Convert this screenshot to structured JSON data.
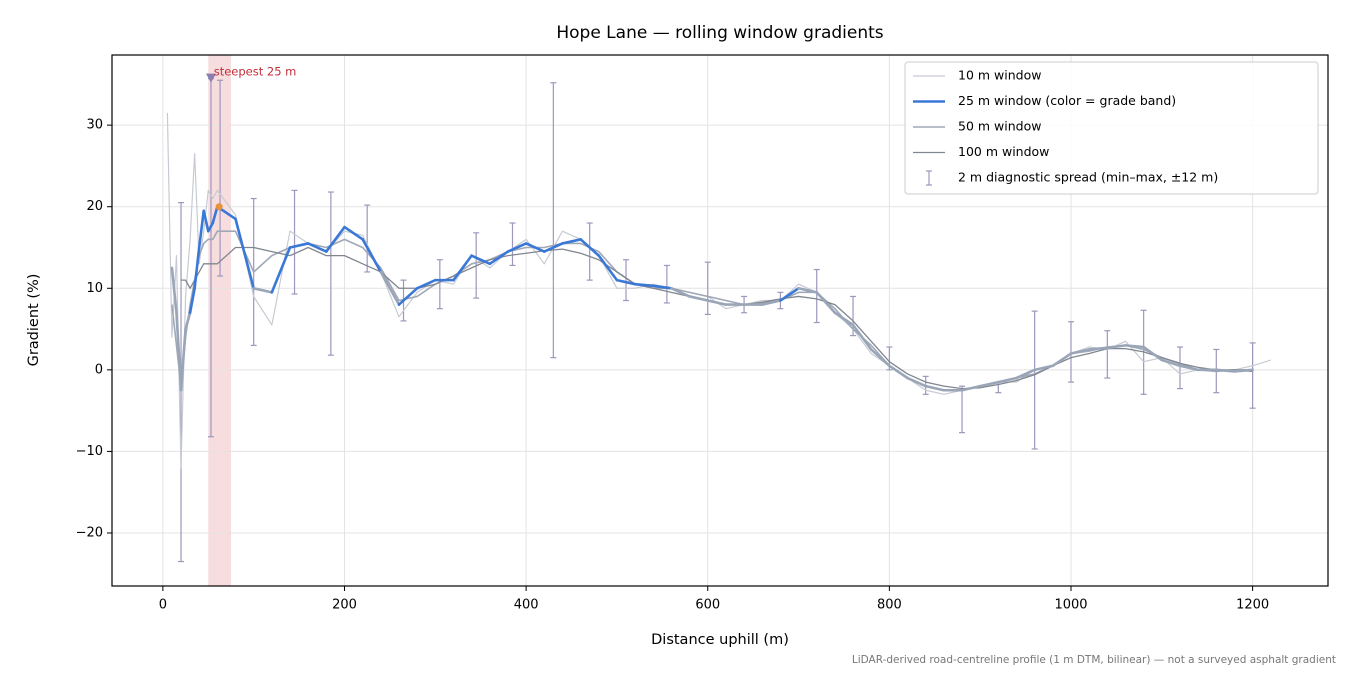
{
  "chart_data": {
    "type": "line",
    "title": "Hope Lane — rolling window gradients",
    "x_label": "Distance uphill (m)",
    "y_label": "Gradient (%)",
    "footnote": "LiDAR-derived road-centreline profile (1 m DTM, bilinear) — not a surveyed asphalt gradient",
    "xlim": [
      -56,
      1283
    ],
    "ylim": [
      -26.5,
      38.6
    ],
    "xticks": [
      0,
      200,
      400,
      600,
      800,
      1000,
      1200
    ],
    "yticks": [
      {
        "value": -20,
        "label": "−20"
      },
      {
        "value": -10,
        "label": "−10"
      },
      0,
      10,
      20,
      30
    ],
    "grid": true,
    "legend": "upper right",
    "x": [
      5,
      10,
      15,
      20,
      25,
      30,
      35,
      40,
      45,
      50,
      55,
      60,
      80,
      100,
      120,
      140,
      160,
      180,
      200,
      220,
      240,
      260,
      280,
      300,
      320,
      340,
      360,
      380,
      400,
      420,
      440,
      460,
      480,
      500,
      520,
      540,
      560,
      580,
      600,
      620,
      640,
      660,
      680,
      700,
      720,
      740,
      760,
      780,
      800,
      820,
      840,
      860,
      880,
      900,
      920,
      940,
      960,
      980,
      1000,
      1020,
      1040,
      1060,
      1080,
      1100,
      1120,
      1140,
      1160,
      1180,
      1200,
      1220
    ],
    "series": [
      {
        "name": "10 m window",
        "color": "#c6cbd3",
        "width": 1.2,
        "values": [
          31.5,
          4,
          14,
          -12,
          9,
          16,
          26.5,
          13,
          17,
          22,
          21,
          22,
          19,
          9,
          5.5,
          17,
          15.5,
          14.5,
          17,
          16.5,
          12,
          6.5,
          9.5,
          11,
          10.5,
          14,
          12.5,
          14.5,
          16,
          13,
          17,
          16,
          14,
          10,
          10,
          10.5,
          10,
          9.5,
          9,
          7.5,
          8,
          8.5,
          8.5,
          10.5,
          9.5,
          7,
          5,
          2,
          0.5,
          -1,
          -2.5,
          -3,
          -2.5,
          -2,
          -1.5,
          -1.5,
          0,
          0.5,
          2,
          2.8,
          2.5,
          3.5,
          1,
          1.5,
          -0.5,
          0,
          0,
          0,
          0.5,
          1.2
        ]
      },
      {
        "name": "25 m window (color = grade band)",
        "color": "#3a78d8",
        "width": 2.6,
        "values": [
          null,
          12.5,
          7,
          -2.5,
          5,
          7,
          10,
          15,
          19.5,
          17,
          18,
          20,
          18.5,
          10,
          9.5,
          15,
          15.5,
          14.5,
          17.5,
          16,
          12,
          8,
          10,
          11,
          11,
          14,
          13,
          14.5,
          15.5,
          14.5,
          15.5,
          16,
          14,
          11,
          10.5,
          10.3,
          10,
          9,
          8.5,
          8,
          8,
          8,
          8.5,
          10,
          9.5,
          7,
          5.5,
          2.5,
          0.5,
          -1,
          -2,
          -2.5,
          -2.5,
          -2,
          -1.5,
          -1,
          0,
          0.5,
          2,
          2.5,
          2.7,
          3,
          2.8,
          1.2,
          0.5,
          0,
          0,
          -0.2,
          0,
          null
        ],
        "colors": [
          "#9aa6b8",
          "#3a78d8",
          "#9aa6b8",
          "#9aa6b8",
          "#9aa6b8",
          "#9aa6b8",
          "#3a78d8",
          "#3a78d8",
          "#3a78d8",
          "#3a78d8",
          "#3a78d8",
          "#3a78d8",
          "#3a78d8",
          "#3a78d8",
          "#9aa6b8",
          "#3a78d8",
          "#3a78d8",
          "#3a78d8",
          "#3a78d8",
          "#3a78d8",
          "#3a78d8",
          "#9aa6b8",
          "#3a78d8",
          "#3a78d8",
          "#3a78d8",
          "#3a78d8",
          "#3a78d8",
          "#3a78d8",
          "#3a78d8",
          "#3a78d8",
          "#3a78d8",
          "#3a78d8",
          "#3a78d8",
          "#3a78d8",
          "#3a78d8",
          "#3a78d8",
          "#3a78d8",
          "#9aa6b8",
          "#9aa6b8",
          "#9aa6b8",
          "#9aa6b8",
          "#9aa6b8",
          "#9aa6b8",
          "#3a78d8",
          "#9aa6b8",
          "#9aa6b8",
          "#9aa6b8",
          "#9aa6b8",
          "#9aa6b8",
          "#9aa6b8",
          "#9aa6b8",
          "#9aa6b8",
          "#9aa6b8",
          "#9aa6b8",
          "#9aa6b8",
          "#9aa6b8",
          "#9aa6b8",
          "#9aa6b8",
          "#9aa6b8",
          "#9aa6b8",
          "#9aa6b8",
          "#9aa6b8",
          "#9aa6b8",
          "#9aa6b8",
          "#9aa6b8",
          "#9aa6b8",
          "#9aa6b8",
          "#9aa6b8",
          "#9aa6b8",
          "#9aa6b8"
        ]
      },
      {
        "name": "50 m window",
        "color": "#a0a8b8",
        "width": 1.6,
        "values": [
          null,
          8,
          3,
          -2,
          4,
          8,
          11,
          14,
          15.5,
          16,
          16,
          17,
          17,
          12,
          14,
          15,
          15.5,
          15,
          16,
          15,
          12.5,
          8.5,
          9,
          10.5,
          11.5,
          13,
          13.5,
          14.5,
          15,
          15,
          15.5,
          15.5,
          14.5,
          12,
          10.5,
          10,
          10,
          9.5,
          9,
          8.5,
          8,
          8.2,
          8.5,
          9.5,
          9.5,
          7.5,
          5,
          3,
          0.5,
          -1,
          -2,
          -2.5,
          -2.5,
          -2,
          -1.5,
          -1,
          -0.5,
          0.5,
          2,
          2.3,
          2.8,
          3,
          2.5,
          1.5,
          0.8,
          0,
          -0.2,
          0,
          0,
          null
        ]
      },
      {
        "name": "100 m window",
        "color": "#80868f",
        "width": 1.3,
        "values": [
          null,
          null,
          null,
          11,
          11,
          10,
          11,
          12,
          13,
          13,
          13,
          13,
          15,
          15,
          14.5,
          14,
          15,
          14,
          14,
          13,
          12,
          10,
          10,
          10.5,
          11.5,
          12.5,
          13.5,
          14,
          14.3,
          14.6,
          14.8,
          14.3,
          13.5,
          12,
          10.5,
          10,
          9.5,
          9,
          8.5,
          8,
          8,
          8.3,
          8.7,
          9,
          8.7,
          8,
          6,
          3.5,
          1,
          -0.5,
          -1.5,
          -2,
          -2.3,
          -2.2,
          -1.8,
          -1.3,
          -0.6,
          0.5,
          1.5,
          2,
          2.6,
          2.6,
          2.2,
          1.5,
          0.8,
          0.3,
          0,
          0,
          -0.2,
          null
        ]
      }
    ],
    "errorbars": {
      "name": "2 m diagnostic spread (min–max, ±12 m)",
      "color": "#9d97bd",
      "x": [
        20,
        53,
        63,
        100,
        145,
        185,
        225,
        265,
        305,
        345,
        385,
        430,
        470,
        510,
        555,
        600,
        640,
        680,
        720,
        760,
        800,
        840,
        880,
        920,
        960,
        1000,
        1040,
        1080,
        1120,
        1160,
        1200
      ],
      "low": [
        -23.5,
        -8.2,
        11.5,
        3,
        9.3,
        1.8,
        12,
        6,
        7.5,
        8.8,
        12.8,
        1.5,
        11,
        8.5,
        8.2,
        6.8,
        7,
        7.5,
        5.8,
        4.2,
        0,
        -3,
        -7.7,
        -2.8,
        -9.7,
        -1.5,
        -1,
        -3,
        -2.3,
        -2.8,
        -4.7
      ],
      "high": [
        20.5,
        35.7,
        35.5,
        21,
        22,
        21.8,
        20.2,
        11,
        13.5,
        16.8,
        18,
        35.2,
        18,
        13.5,
        12.8,
        13.2,
        9,
        9.5,
        12.3,
        9,
        2.8,
        -0.8,
        -2,
        -1.5,
        7.2,
        5.9,
        4.8,
        7.3,
        2.8,
        2.5,
        3.3
      ]
    },
    "highlight": {
      "xlim": [
        50,
        75
      ],
      "color": "#f4c6c9"
    },
    "annotation": {
      "text": "steepest 25 m",
      "x": 56,
      "y": 36.5,
      "color": "#c0303a"
    },
    "marker": {
      "x": 53,
      "y": 35.7,
      "color": "#8a7db0"
    },
    "peak": {
      "x": 62,
      "y": 20,
      "color": "#e8923a"
    }
  }
}
